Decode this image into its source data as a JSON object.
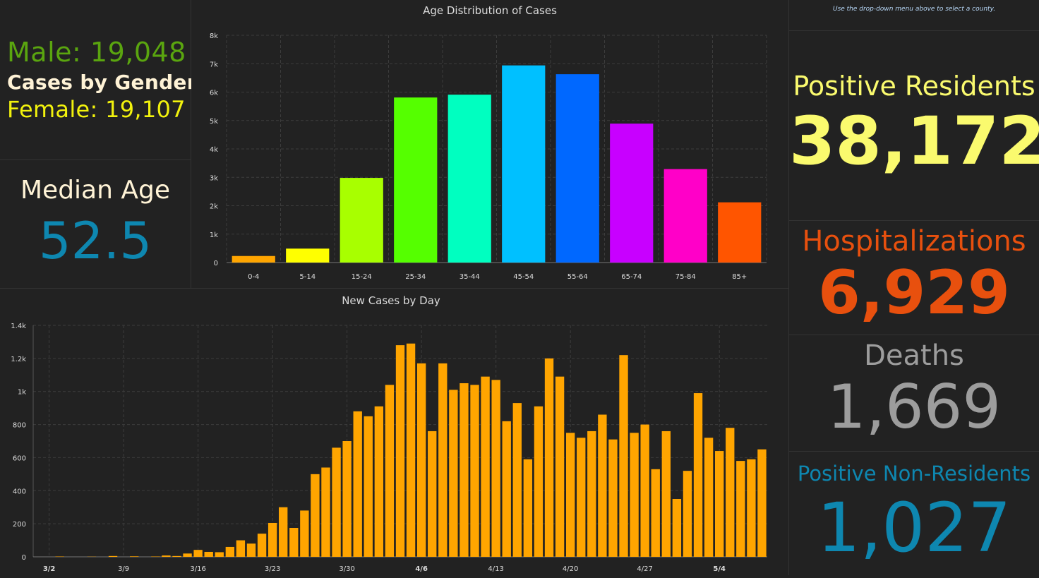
{
  "gender": {
    "male": "Male: 19,048",
    "heading": "Cases by Gender",
    "female": "Female: 19,107",
    "male_color": "#5aa50f",
    "heading_color": "#fff3d6",
    "female_color": "#f2f20d"
  },
  "median": {
    "label": "Median Age",
    "value": "52.5",
    "value_color": "#0e87b0"
  },
  "hint": "Use the drop-down menu above to select a county.",
  "stats": {
    "positive": {
      "label": "Positive Residents",
      "value": "38,172",
      "color": "#fafa6e"
    },
    "hospitalizations": {
      "label": "Hospitalizations",
      "value": "6,929",
      "color": "#e8500e"
    },
    "deaths": {
      "label": "Deaths",
      "value": "1,669",
      "color": "#9d9d9d"
    },
    "nonresidents": {
      "label": "Positive Non-Residents",
      "value": "1,027",
      "color": "#0e87b0"
    }
  },
  "chart_data": [
    {
      "type": "bar",
      "title": "Age Distribution of Cases",
      "categories": [
        "0-4",
        "5-14",
        "15-24",
        "25-34",
        "35-44",
        "45-54",
        "55-64",
        "65-74",
        "75-84",
        "85+"
      ],
      "values": [
        230,
        490,
        2980,
        5810,
        5910,
        6940,
        6630,
        4890,
        3290,
        2120
      ],
      "colors": [
        "#ffa500",
        "#ffff00",
        "#a8ff00",
        "#55ff00",
        "#00ffc0",
        "#00c0ff",
        "#0068ff",
        "#c800ff",
        "#ff00c8",
        "#ff5500"
      ],
      "yticks": [
        0,
        1000,
        2000,
        3000,
        4000,
        5000,
        6000,
        7000,
        8000
      ],
      "yticklabels": [
        "0",
        "1k",
        "2k",
        "3k",
        "4k",
        "5k",
        "6k",
        "7k",
        "8k"
      ],
      "ylim": [
        0,
        8000
      ],
      "grid": true
    },
    {
      "type": "bar",
      "title": "New Cases by Day",
      "x_start": "3/1",
      "values": [
        0,
        0,
        2,
        0,
        0,
        1,
        0,
        5,
        0,
        3,
        0,
        2,
        8,
        5,
        20,
        42,
        30,
        28,
        60,
        100,
        80,
        140,
        205,
        300,
        175,
        280,
        500,
        540,
        660,
        700,
        880,
        850,
        910,
        1040,
        1280,
        1290,
        1170,
        760,
        1170,
        1010,
        1050,
        1040,
        1090,
        1070,
        820,
        930,
        590,
        910,
        1200,
        1090,
        750,
        720,
        760,
        860,
        710,
        1220,
        750,
        800,
        530,
        760,
        350,
        520,
        990,
        720,
        640,
        780,
        580,
        590,
        650
      ],
      "xtick_labels": [
        {
          "label": "3/2",
          "index": 1,
          "bold": true
        },
        {
          "label": "3/9",
          "index": 8,
          "bold": false
        },
        {
          "label": "3/16",
          "index": 15,
          "bold": false
        },
        {
          "label": "3/23",
          "index": 22,
          "bold": false
        },
        {
          "label": "3/30",
          "index": 29,
          "bold": false
        },
        {
          "label": "4/6",
          "index": 36,
          "bold": true
        },
        {
          "label": "4/13",
          "index": 43,
          "bold": false
        },
        {
          "label": "4/20",
          "index": 50,
          "bold": false
        },
        {
          "label": "4/27",
          "index": 57,
          "bold": false
        },
        {
          "label": "5/4",
          "index": 64,
          "bold": true
        }
      ],
      "yticks": [
        0,
        200,
        400,
        600,
        800,
        1000,
        1200,
        1400
      ],
      "yticklabels": [
        "0",
        "200",
        "400",
        "600",
        "800",
        "1k",
        "1.2k",
        "1.4k"
      ],
      "ylim": [
        0,
        1400
      ],
      "color": "#ffa500",
      "grid": true
    }
  ]
}
